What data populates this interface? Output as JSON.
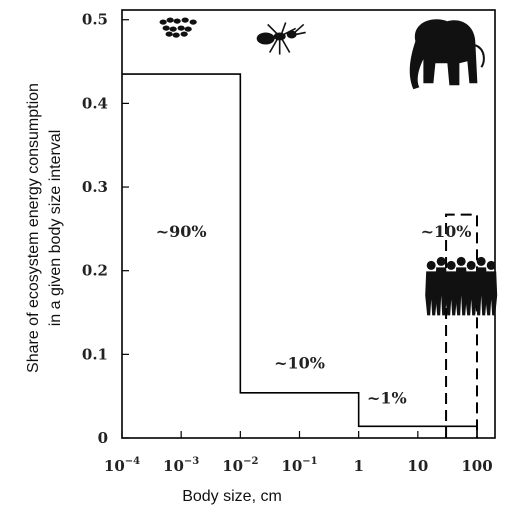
{
  "chart_data": {
    "type": "line",
    "title": "",
    "xlabel": "Body size, cm",
    "ylabel_lines": [
      "Share of ecosystem energy consumption",
      "in a given body size interval"
    ],
    "x_scale": "log",
    "xlim": [
      0.0001,
      100
    ],
    "ylim": [
      0,
      0.52
    ],
    "x_ticks": [
      {
        "value": 0.0001,
        "base": "10",
        "exp": "−4"
      },
      {
        "value": 0.001,
        "base": "10",
        "exp": "−3"
      },
      {
        "value": 0.01,
        "base": "10",
        "exp": "−2"
      },
      {
        "value": 0.1,
        "base": "10",
        "exp": "−1"
      },
      {
        "value": 1,
        "base": "1",
        "exp": ""
      },
      {
        "value": 10,
        "base": "10",
        "exp": ""
      },
      {
        "value": 100,
        "base": "100",
        "exp": ""
      }
    ],
    "y_ticks": [
      {
        "value": 0,
        "label": "0"
      },
      {
        "value": 0.1,
        "label": "0.1"
      },
      {
        "value": 0.2,
        "label": "0.2"
      },
      {
        "value": 0.3,
        "label": "0.3"
      },
      {
        "value": 0.4,
        "label": "0.4"
      },
      {
        "value": 0.5,
        "label": "0.5"
      }
    ],
    "grid": false,
    "series": [
      {
        "style": "solid",
        "bins": [
          {
            "x_start": 0.0001,
            "x_end": 0.01,
            "y": 0.435
          },
          {
            "x_start": 0.01,
            "x_end": 1,
            "y": 0.054
          },
          {
            "x_start": 1,
            "x_end": 100,
            "y": 0.014
          }
        ]
      },
      {
        "style": "dashed",
        "bins": [
          {
            "x_start": 30,
            "x_end": 100,
            "y": 0.267
          }
        ]
      }
    ],
    "annotations": [
      {
        "text": "~90%",
        "x": 0.001,
        "y": 0.24
      },
      {
        "text": "~10%",
        "x": 0.1,
        "y": 0.083
      },
      {
        "text": "~1%",
        "x": 3,
        "y": 0.041
      },
      {
        "text": "~10%",
        "x": 30,
        "y": 0.24
      }
    ],
    "silhouettes": [
      {
        "icon": "microbes-icon",
        "x": 0.001,
        "y": 0.49
      },
      {
        "icon": "ant-icon",
        "x": 0.05,
        "y": 0.48
      },
      {
        "icon": "elephant-icon",
        "x": 25,
        "y": 0.46
      },
      {
        "icon": "people-icon",
        "x": 50,
        "y": 0.18
      }
    ]
  }
}
